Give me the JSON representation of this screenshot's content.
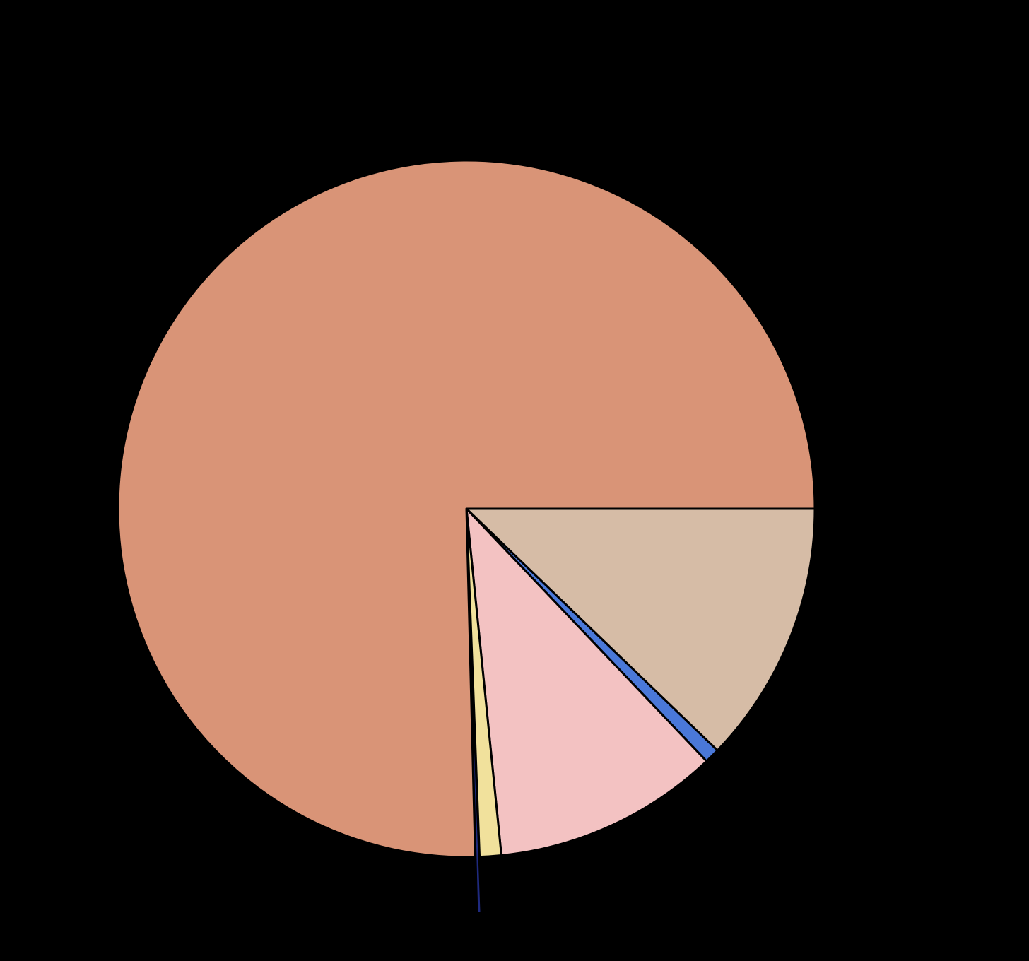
{
  "chart_data": {
    "type": "pie",
    "values": [
      12.2,
      0.7,
      10.5,
      1.0,
      0.2,
      75.4
    ],
    "colors": [
      "#d6bca6",
      "#4a78d8",
      "#f3c2c2",
      "#f1e19c",
      "#1f2a80",
      "#d99477"
    ],
    "explode": [
      0,
      0,
      0,
      0,
      0.16,
      0
    ]
  }
}
